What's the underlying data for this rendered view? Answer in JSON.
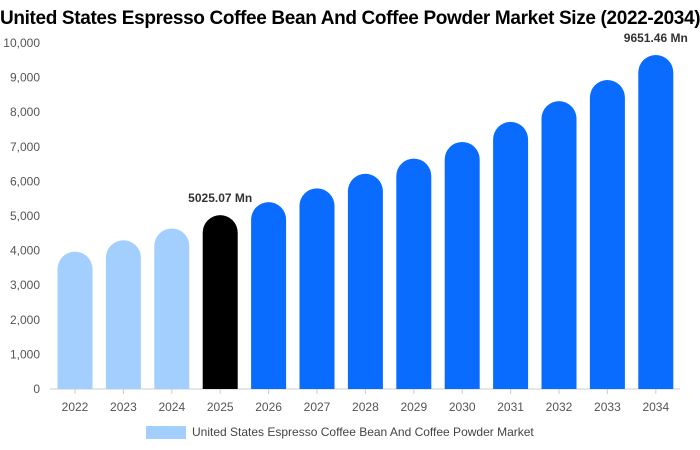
{
  "chart_data": {
    "type": "bar",
    "title": "United States Espresso Coffee Bean And Coffee Powder Market Size (2022-2034)",
    "categories": [
      "2022",
      "2023",
      "2024",
      "2025",
      "2026",
      "2027",
      "2028",
      "2029",
      "2030",
      "2031",
      "2032",
      "2033",
      "2034"
    ],
    "series": [
      {
        "name": "United States Espresso Coffee Bean And Coffee Powder Market",
        "values": [
          3970,
          4300,
          4640,
          5025.07,
          5400,
          5800,
          6220,
          6660,
          7140,
          7720,
          8320,
          8930,
          9651.46
        ]
      }
    ],
    "ylim": [
      0,
      10000
    ],
    "yticks": [
      "0",
      "1,000",
      "2,000",
      "3,000",
      "4,000",
      "5,000",
      "6,000",
      "7,000",
      "8,000",
      "9,000",
      "10,000"
    ],
    "data_labels": [
      {
        "category": "2025",
        "text": "5025.07 Mn"
      },
      {
        "category": "2034",
        "text": "9651.46 Mn"
      }
    ],
    "bar_colors": {
      "historical": "#a3cfff",
      "base_year": "#000000",
      "forecast": "#0a6cff"
    },
    "historical_years": [
      "2022",
      "2023",
      "2024"
    ],
    "base_year": "2025",
    "grid": false,
    "legend_position": "bottom"
  }
}
